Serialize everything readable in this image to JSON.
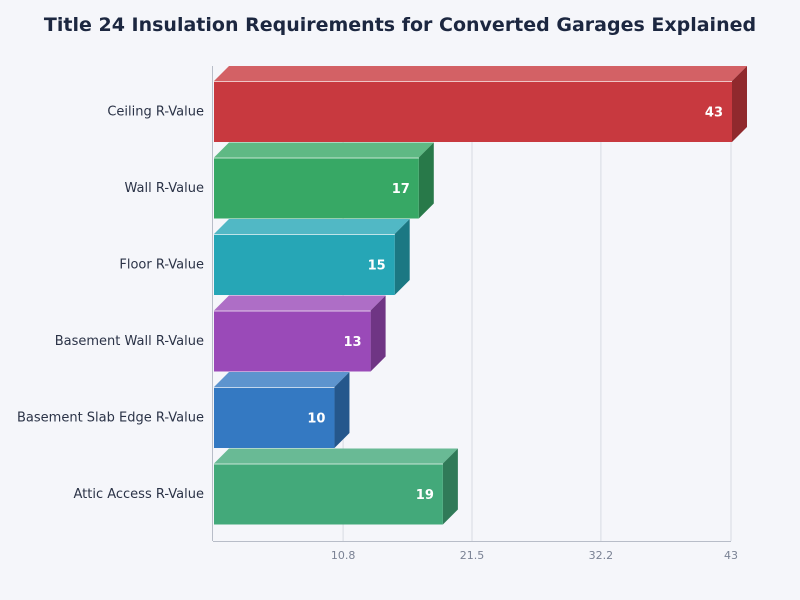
{
  "chart_data": {
    "type": "bar",
    "orientation": "horizontal",
    "title": "Title 24 Insulation Requirements for Converted Garages Explained",
    "categories": [
      "Ceiling R-Value",
      "Wall R-Value",
      "Floor R-Value",
      "Basement Wall R-Value",
      "Basement Slab Edge R-Value",
      "Attic Access R-Value"
    ],
    "values": [
      43,
      17,
      15,
      13,
      10,
      19
    ],
    "value_labels": [
      "43",
      "17",
      "15",
      "13",
      "10",
      "19"
    ],
    "xlim": [
      0,
      43
    ],
    "x_ticks": [
      10.8,
      21.5,
      32.2,
      43
    ],
    "x_tick_labels": [
      "10.8",
      "21.5",
      "32.2",
      "43"
    ],
    "grid": true,
    "style": "3d",
    "colors": [
      "#c8393f",
      "#37a865",
      "#26a6b6",
      "#9a4ab8",
      "#3479c2",
      "#43a97a"
    ]
  }
}
